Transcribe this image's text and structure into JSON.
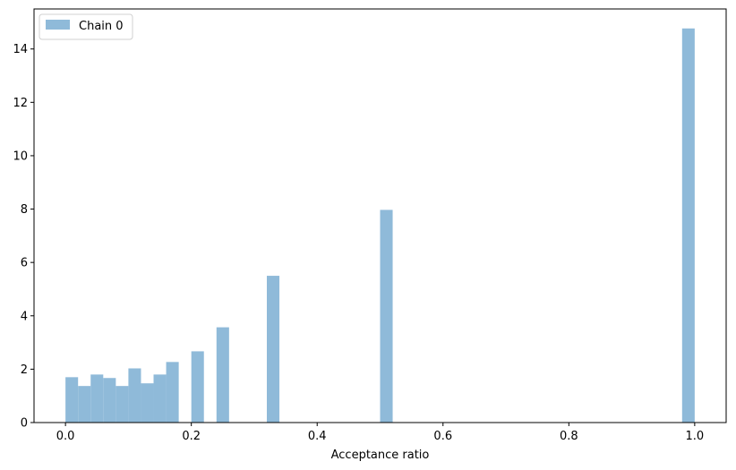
{
  "chart_data": {
    "type": "bar",
    "subtype": "histogram",
    "title": "",
    "xlabel": "Acceptance ratio",
    "ylabel": "",
    "xlim": [
      -0.05,
      1.05
    ],
    "ylim": [
      0,
      15.5
    ],
    "xticks": [
      0.0,
      0.2,
      0.4,
      0.6,
      0.8,
      1.0
    ],
    "xtick_labels": [
      "0.0",
      "0.2",
      "0.4",
      "0.6",
      "0.8",
      "1.0"
    ],
    "yticks": [
      0,
      2,
      4,
      6,
      8,
      10,
      12,
      14
    ],
    "ytick_labels": [
      "0",
      "2",
      "4",
      "6",
      "8",
      "10",
      "12",
      "14"
    ],
    "grid": false,
    "legend_position": "top-left",
    "bar_width": 0.02,
    "color": "#8fbad9",
    "series": [
      {
        "name": "Chain 0",
        "bins": [
          {
            "x0": 0.0,
            "x1": 0.02,
            "value": 1.7
          },
          {
            "x0": 0.02,
            "x1": 0.04,
            "value": 1.37
          },
          {
            "x0": 0.04,
            "x1": 0.06,
            "value": 1.8
          },
          {
            "x0": 0.06,
            "x1": 0.08,
            "value": 1.67
          },
          {
            "x0": 0.08,
            "x1": 0.1,
            "value": 1.37
          },
          {
            "x0": 0.1,
            "x1": 0.12,
            "value": 2.03
          },
          {
            "x0": 0.12,
            "x1": 0.14,
            "value": 1.47
          },
          {
            "x0": 0.14,
            "x1": 0.16,
            "value": 1.8
          },
          {
            "x0": 0.16,
            "x1": 0.18,
            "value": 2.27
          },
          {
            "x0": 0.2,
            "x1": 0.22,
            "value": 2.67
          },
          {
            "x0": 0.24,
            "x1": 0.26,
            "value": 3.57
          },
          {
            "x0": 0.32,
            "x1": 0.34,
            "value": 5.5
          },
          {
            "x0": 0.5,
            "x1": 0.52,
            "value": 7.97
          },
          {
            "x0": 0.98,
            "x1": 1.0,
            "value": 14.77
          }
        ]
      }
    ]
  }
}
